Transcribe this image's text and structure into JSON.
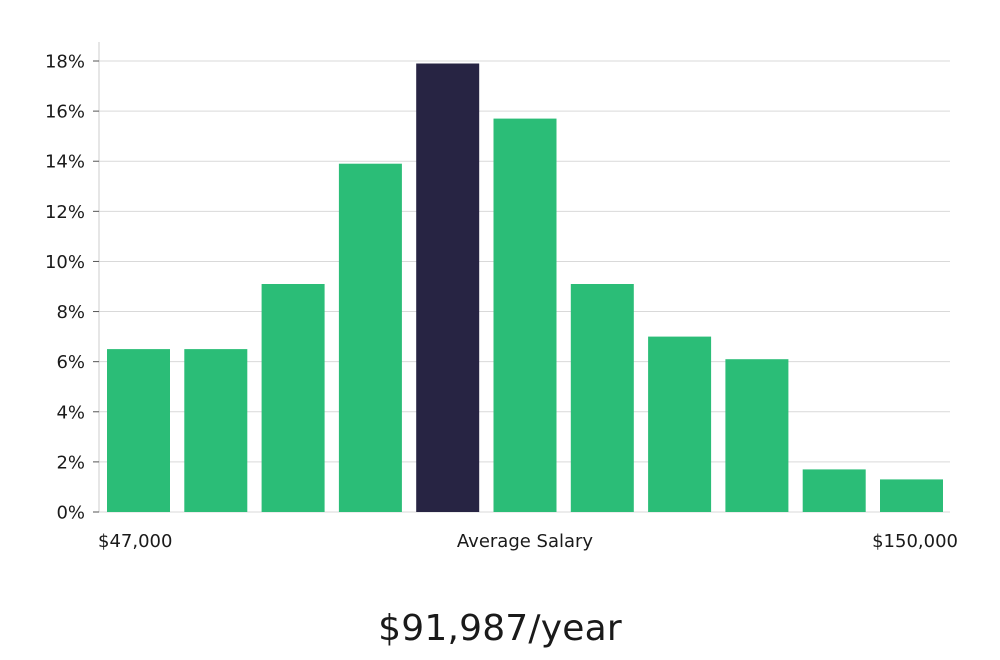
{
  "chart_data": {
    "type": "bar",
    "title": "",
    "xlabel": "",
    "ylabel": "",
    "ylim": [
      0,
      18
    ],
    "yticks": [
      "0%",
      "2%",
      "4%",
      "6%",
      "8%",
      "10%",
      "12%",
      "14%",
      "16%",
      "18%"
    ],
    "ytick_values": [
      0,
      2,
      4,
      6,
      8,
      10,
      12,
      14,
      16,
      18
    ],
    "x_labels": {
      "left": "$47,000",
      "center": "Average Salary",
      "right": "$150,000"
    },
    "values": [
      6.5,
      6.5,
      9.1,
      13.9,
      17.9,
      15.7,
      9.1,
      7.0,
      6.1,
      1.7,
      1.3
    ],
    "highlight_index": 4,
    "colors": {
      "bar": "#2bbd77",
      "highlight": "#272443",
      "grid": "#d9d9d9",
      "axis": "#cccccc"
    }
  },
  "summary": {
    "average_salary": "$91,987/year"
  }
}
